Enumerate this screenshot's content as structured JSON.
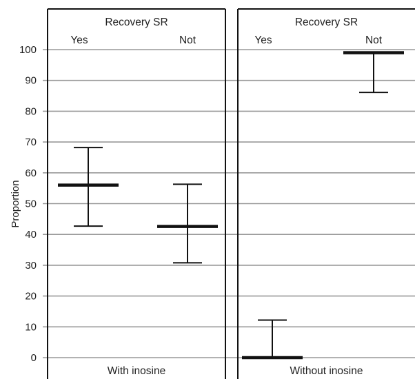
{
  "chart_data": {
    "type": "error-bar",
    "ylabel": "Proportion",
    "ylim": [
      0,
      100
    ],
    "yticks": [
      0,
      10,
      20,
      30,
      40,
      50,
      60,
      70,
      80,
      90,
      100
    ],
    "grid": true,
    "panels": [
      {
        "header": "Recovery SR",
        "footer": "With inosine",
        "groups": [
          {
            "label": "Yes",
            "estimate": 56,
            "lower": 42.7,
            "upper": 68.2
          },
          {
            "label": "Not",
            "estimate": 42.6,
            "lower": 30.8,
            "upper": 56.3
          }
        ]
      },
      {
        "header": "Recovery SR",
        "footer": "Without inosine",
        "groups": [
          {
            "label": "Yes",
            "estimate": 0,
            "lower": 0,
            "upper": 12.2
          },
          {
            "label": "Not",
            "estimate": 99,
            "lower": 86.1,
            "upper": 99
          }
        ]
      }
    ]
  }
}
